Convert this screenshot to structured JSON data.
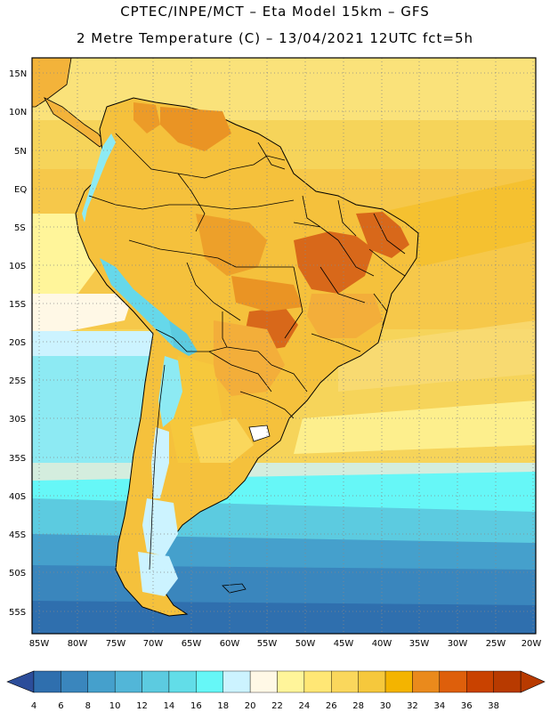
{
  "header": {
    "line1": "CPTEC/INPE/MCT –  Eta Model 15km – GFS",
    "line2": "2 Metre Temperature (C) – 13/04/2021 12UTC fct=5h"
  },
  "axes": {
    "lat_labels": [
      "15N",
      "10N",
      "5N",
      "EQ",
      "5S",
      "10S",
      "15S",
      "20S",
      "25S",
      "30S",
      "35S",
      "40S",
      "45S",
      "50S",
      "55S"
    ],
    "lon_labels": [
      "85W",
      "80W",
      "75W",
      "70W",
      "65W",
      "60W",
      "55W",
      "50W",
      "45W",
      "40W",
      "35W",
      "30W",
      "25W",
      "20W"
    ]
  },
  "legend": {
    "labels": [
      "4",
      "6",
      "8",
      "10",
      "12",
      "14",
      "16",
      "18",
      "20",
      "22",
      "24",
      "26",
      "28",
      "30",
      "32",
      "34",
      "36",
      "38"
    ],
    "colors": [
      "#2f6fae",
      "#3a86bd",
      "#45a0cc",
      "#52b6d8",
      "#5ccbe0",
      "#62dde8",
      "#66f7f7",
      "#ccf3ff",
      "#fff8e6",
      "#fff59a",
      "#ffe775",
      "#fad75c",
      "#f6c83c",
      "#f4b400",
      "#ea8a1c",
      "#de5f0b",
      "#c94200",
      "#b83a00"
    ]
  },
  "colors": {
    "ocean_warm": "#f6d45a",
    "ocean_hot": "#f8c84a",
    "land_base": "#f5c13c",
    "land_hot": "#ea9424",
    "land_very_hot": "#d8681a",
    "andes_cold": "#66d8ea",
    "deep_cold": "#2f6fae"
  }
}
